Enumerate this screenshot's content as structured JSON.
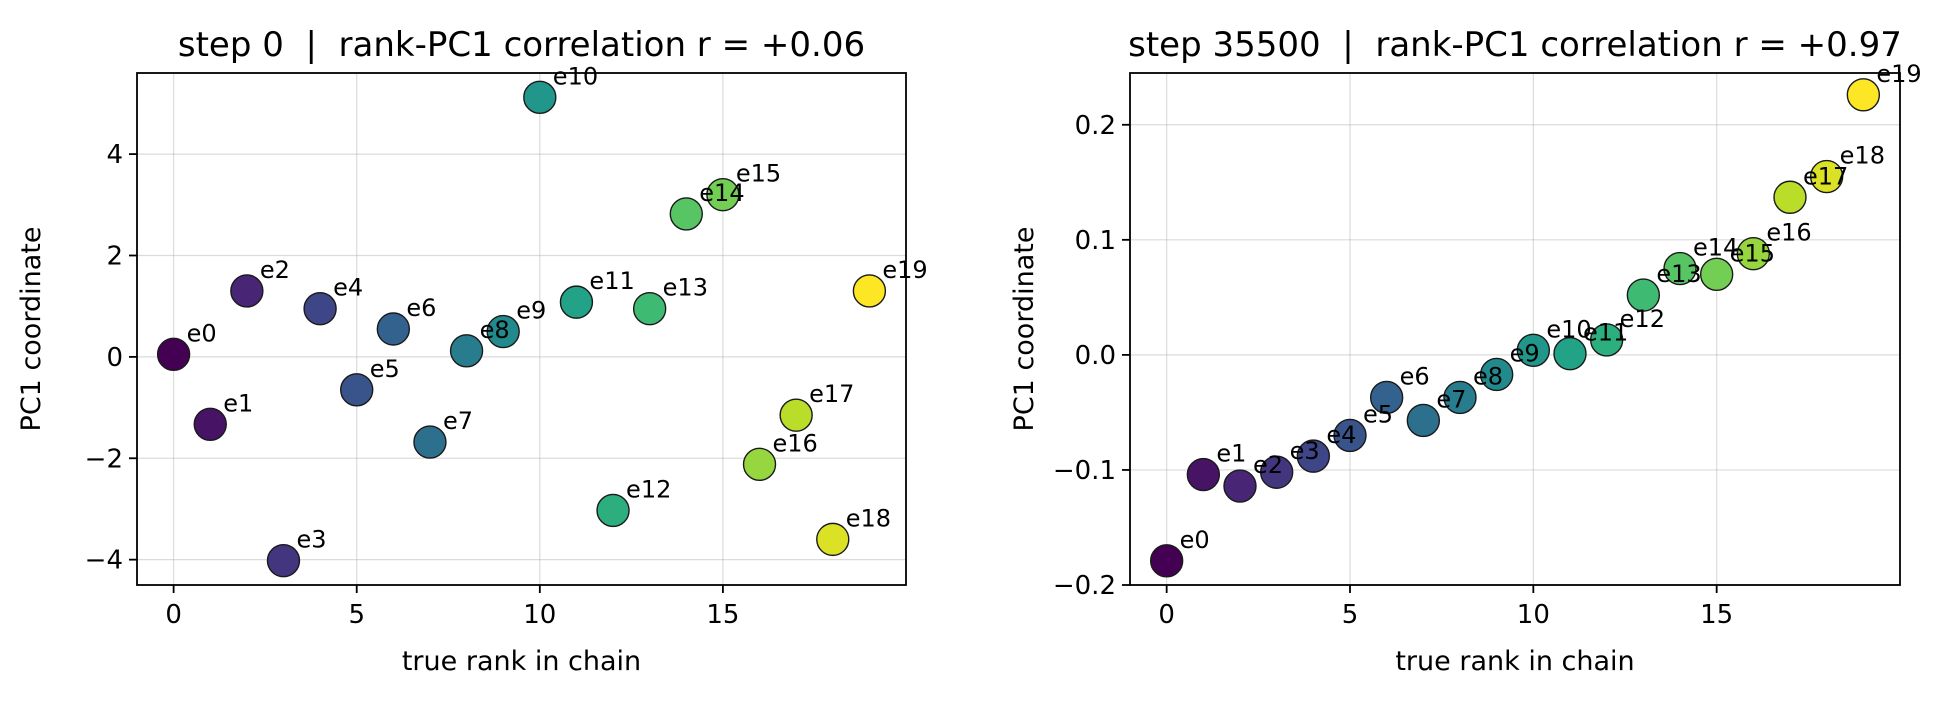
{
  "chart_data": [
    {
      "type": "scatter",
      "title": "step 0  |  rank-PC1 correlation r = +0.06",
      "xlabel": "true rank in chain",
      "ylabel": "PC1 coordinate",
      "xlim": [
        -1,
        20
      ],
      "ylim": [
        -4.5,
        5.6
      ],
      "xticks": [
        0,
        5,
        10,
        15
      ],
      "yticks": [
        -4,
        -2,
        0,
        2,
        4
      ],
      "xtick_labels": [
        "0",
        "5",
        "10",
        "15"
      ],
      "ytick_labels": [
        "−4",
        "−2",
        "0",
        "2",
        "4"
      ],
      "grid": true,
      "colormap": "viridis",
      "points": [
        {
          "label": "e0",
          "x": 0,
          "y": 0.05
        },
        {
          "label": "e1",
          "x": 1,
          "y": -1.33
        },
        {
          "label": "e2",
          "x": 2,
          "y": 1.3
        },
        {
          "label": "e3",
          "x": 3,
          "y": -4.02
        },
        {
          "label": "e4",
          "x": 4,
          "y": 0.95
        },
        {
          "label": "e5",
          "x": 5,
          "y": -0.65
        },
        {
          "label": "e6",
          "x": 6,
          "y": 0.55
        },
        {
          "label": "e7",
          "x": 7,
          "y": -1.68
        },
        {
          "label": "e8",
          "x": 8,
          "y": 0.12
        },
        {
          "label": "e9",
          "x": 9,
          "y": 0.5
        },
        {
          "label": "e10",
          "x": 10,
          "y": 5.12
        },
        {
          "label": "e11",
          "x": 11,
          "y": 1.08
        },
        {
          "label": "e12",
          "x": 12,
          "y": -3.03
        },
        {
          "label": "e13",
          "x": 13,
          "y": 0.95
        },
        {
          "label": "e14",
          "x": 14,
          "y": 2.82
        },
        {
          "label": "e15",
          "x": 15,
          "y": 3.2
        },
        {
          "label": "e16",
          "x": 16,
          "y": -2.12
        },
        {
          "label": "e17",
          "x": 17,
          "y": -1.15
        },
        {
          "label": "e18",
          "x": 18,
          "y": -3.6
        },
        {
          "label": "e19",
          "x": 19,
          "y": 1.3
        }
      ]
    },
    {
      "type": "scatter",
      "title": "step 35500  |  rank-PC1 correlation r = +0.97",
      "xlabel": "true rank in chain",
      "ylabel": "PC1 coordinate",
      "xlim": [
        -1,
        20
      ],
      "ylim": [
        -0.2,
        0.245
      ],
      "xticks": [
        0,
        5,
        10,
        15
      ],
      "yticks": [
        -0.2,
        -0.1,
        0.0,
        0.1,
        0.2
      ],
      "xtick_labels": [
        "0",
        "5",
        "10",
        "15"
      ],
      "ytick_labels": [
        "−0.2",
        "−0.1",
        "0.0",
        "0.1",
        "0.2"
      ],
      "grid": true,
      "colormap": "viridis",
      "points": [
        {
          "label": "e0",
          "x": 0,
          "y": -0.179
        },
        {
          "label": "e1",
          "x": 1,
          "y": -0.104
        },
        {
          "label": "e2",
          "x": 2,
          "y": -0.114
        },
        {
          "label": "e3",
          "x": 3,
          "y": -0.102
        },
        {
          "label": "e4",
          "x": 4,
          "y": -0.088
        },
        {
          "label": "e5",
          "x": 5,
          "y": -0.07
        },
        {
          "label": "e6",
          "x": 6,
          "y": -0.037
        },
        {
          "label": "e7",
          "x": 7,
          "y": -0.057
        },
        {
          "label": "e8",
          "x": 8,
          "y": -0.037
        },
        {
          "label": "e9",
          "x": 9,
          "y": -0.017
        },
        {
          "label": "e10",
          "x": 10,
          "y": 0.004
        },
        {
          "label": "e11",
          "x": 11,
          "y": 0.001
        },
        {
          "label": "e12",
          "x": 12,
          "y": 0.013
        },
        {
          "label": "e13",
          "x": 13,
          "y": 0.052
        },
        {
          "label": "e14",
          "x": 14,
          "y": 0.075
        },
        {
          "label": "e15",
          "x": 15,
          "y": 0.07
        },
        {
          "label": "e16",
          "x": 16,
          "y": 0.088
        },
        {
          "label": "e17",
          "x": 17,
          "y": 0.137
        },
        {
          "label": "e18",
          "x": 18,
          "y": 0.155
        },
        {
          "label": "e19",
          "x": 19,
          "y": 0.226
        }
      ]
    }
  ]
}
